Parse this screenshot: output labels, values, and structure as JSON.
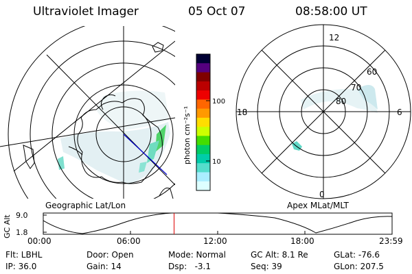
{
  "header": {
    "instrument": "Ultraviolet Imager",
    "date": "05 Oct 07",
    "time": "08:58:00 UT"
  },
  "left_panel": {
    "projection_label": "Geographic Lat/Lon"
  },
  "right_panel": {
    "projection_label": "Apex MLat/MLT",
    "mlt_labels": [
      "12",
      "18",
      "6",
      "0"
    ],
    "mlat_labels": [
      "60",
      "70",
      "80"
    ]
  },
  "colorbar": {
    "unit_label": "photon cm⁻²s⁻¹",
    "tick_labels": [
      "100",
      "10"
    ],
    "colors": [
      "#000033",
      "#55007f",
      "#7f0000",
      "#bb0000",
      "#ee0000",
      "#ff6600",
      "#ff9900",
      "#ffdd00",
      "#ccff00",
      "#44dd00",
      "#00cc66",
      "#00ccaa",
      "#55ddcc",
      "#aaeeff",
      "#ddffff"
    ]
  },
  "altitude_plot": {
    "y_label": "GC Alt",
    "y_ticks": [
      "9.0",
      "1.8"
    ],
    "x_ticks": [
      "00:00",
      "06:00",
      "12:00",
      "18:00",
      "23:59"
    ],
    "current_time_hours": 9.0,
    "marker_color": "#dd0000"
  },
  "status": {
    "filter": "Flt: LBHL",
    "door": "Door: Open",
    "mode": "Mode: Normal",
    "gc_alt": "GC Alt: 8.1 Re",
    "glat": "GLat: -76.6",
    "ip": "IP: 36.0",
    "gain": "Gain: 14",
    "dsp": "Dsp:   -3.1",
    "seq": "Seq: 39",
    "glon": "GLon: 207.5"
  }
}
